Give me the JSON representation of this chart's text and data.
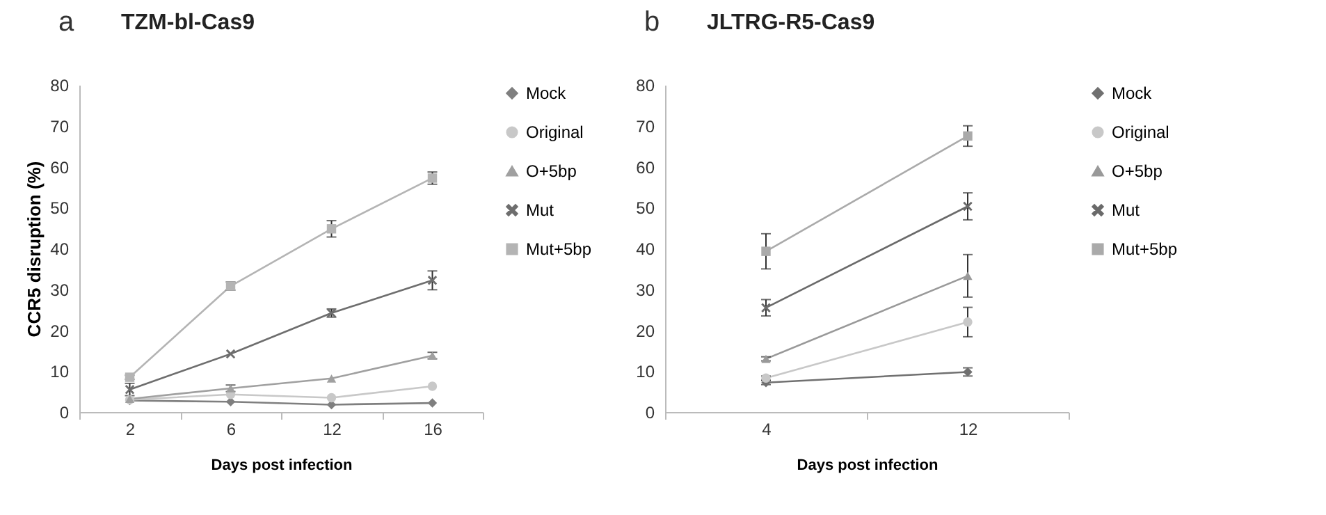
{
  "chart_data": [
    {
      "type": "line",
      "title": "TZM-bl-Cas9",
      "annotations": [
        "a"
      ],
      "xlabel": "Days post infection",
      "ylabel": "CCR5 disruption (%)",
      "categories": [
        "2",
        "6",
        "12",
        "16"
      ],
      "ylim": [
        0,
        80
      ],
      "yticks": [
        0,
        10,
        20,
        30,
        40,
        50,
        60,
        70,
        80
      ],
      "grid": false,
      "legend": "right",
      "series": [
        {
          "name": "Mock",
          "color": "#7f7f7f",
          "marker": "diamond",
          "values": [
            2.8,
            2.5,
            1.8,
            2.2
          ]
        },
        {
          "name": "Original",
          "color": "#c8c8c8",
          "marker": "circle",
          "values": [
            3.0,
            4.3,
            3.5,
            6.3
          ]
        },
        {
          "name": "O+5bp",
          "color": "#a0a0a0",
          "marker": "triangle",
          "values": [
            3.2,
            5.8,
            8.2,
            13.8
          ],
          "errors": [
            null,
            0.8,
            null,
            0.8
          ]
        },
        {
          "name": "Mut",
          "color": "#6e6e6e",
          "marker": "cross",
          "values": [
            5.5,
            14.2,
            24.2,
            32.2
          ],
          "errors": [
            1.5,
            null,
            1,
            2.3
          ]
        },
        {
          "name": "Mut+5bp",
          "color": "#b4b4b4",
          "marker": "square",
          "values": [
            8.5,
            30.8,
            44.8,
            57.2
          ],
          "errors": [
            0.5,
            1,
            2,
            1.5
          ]
        }
      ]
    },
    {
      "type": "line",
      "title": "JLTRG-R5-Cas9",
      "annotations": [
        "b"
      ],
      "xlabel": "Days post infection",
      "categories": [
        "4",
        "12"
      ],
      "ylim": [
        0,
        80
      ],
      "yticks": [
        0,
        10,
        20,
        30,
        40,
        50,
        60,
        70,
        80
      ],
      "grid": false,
      "legend": "right",
      "series": [
        {
          "name": "Mock",
          "color": "#707070",
          "marker": "diamond",
          "values": [
            7.2,
            9.8
          ],
          "errors": [
            0.5,
            1
          ]
        },
        {
          "name": "Original",
          "color": "#c8c8c8",
          "marker": "circle",
          "values": [
            8.3,
            22
          ],
          "errors": [
            0.5,
            3.6
          ]
        },
        {
          "name": "O+5bp",
          "color": "#999999",
          "marker": "triangle",
          "values": [
            13,
            33.3
          ],
          "errors": [
            0.5,
            5.2
          ]
        },
        {
          "name": "Mut",
          "color": "#6a6a6a",
          "marker": "cross",
          "values": [
            25.5,
            50.3
          ],
          "errors": [
            2,
            3.3
          ]
        },
        {
          "name": "Mut+5bp",
          "color": "#aaaaaa",
          "marker": "square",
          "values": [
            39.3,
            67.5
          ],
          "errors": [
            4.3,
            2.5
          ]
        }
      ]
    }
  ]
}
